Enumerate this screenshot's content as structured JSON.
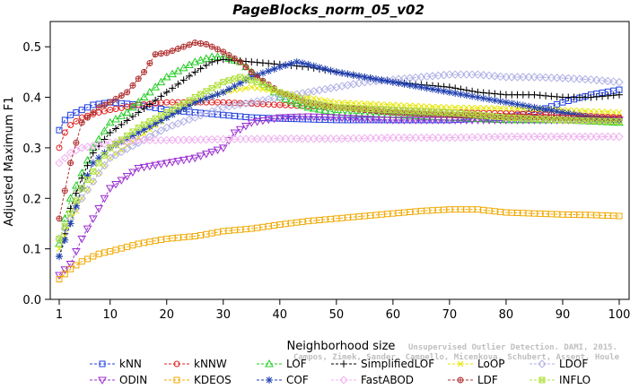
{
  "chart_data": {
    "type": "line",
    "title": "PageBlocks_norm_05_v02",
    "xlabel": "Neighborhood size",
    "ylabel": "Adjusted Maximum F1",
    "xlim": [
      1,
      100
    ],
    "ylim": [
      0,
      0.55
    ],
    "xticks": [
      1,
      10,
      20,
      30,
      40,
      50,
      60,
      70,
      80,
      90,
      100
    ],
    "yticks": [
      0.0,
      0.1,
      0.2,
      0.3,
      0.4,
      0.5
    ],
    "yticklabels": [
      "0.0",
      "0.1",
      "0.2",
      "0.3",
      "0.4",
      "0.5"
    ],
    "grid": false,
    "legend_position": "bottom",
    "watermark": [
      "Campos, Zimek, Sander, Campello, Micenkova, Schubert, Assent, Houle",
      "Unsupervised Outlier Detection. DAMI, 2015."
    ],
    "series": [
      {
        "name": "kNN",
        "color": "#1f3fe0",
        "marker": "square",
        "points": [
          [
            1,
            0.335
          ],
          [
            2,
            0.355
          ],
          [
            3,
            0.365
          ],
          [
            5,
            0.375
          ],
          [
            7,
            0.385
          ],
          [
            10,
            0.39
          ],
          [
            15,
            0.385
          ],
          [
            20,
            0.375
          ],
          [
            25,
            0.37
          ],
          [
            30,
            0.365
          ],
          [
            35,
            0.36
          ],
          [
            40,
            0.358
          ],
          [
            50,
            0.355
          ],
          [
            60,
            0.355
          ],
          [
            70,
            0.355
          ],
          [
            80,
            0.36
          ],
          [
            85,
            0.37
          ],
          [
            90,
            0.39
          ],
          [
            95,
            0.405
          ],
          [
            100,
            0.415
          ]
        ]
      },
      {
        "name": "kNNW",
        "color": "#e02020",
        "marker": "circle",
        "points": [
          [
            1,
            0.3
          ],
          [
            2,
            0.33
          ],
          [
            3,
            0.345
          ],
          [
            5,
            0.36
          ],
          [
            8,
            0.37
          ],
          [
            10,
            0.375
          ],
          [
            15,
            0.385
          ],
          [
            20,
            0.39
          ],
          [
            30,
            0.39
          ],
          [
            40,
            0.385
          ],
          [
            50,
            0.38
          ],
          [
            60,
            0.375
          ],
          [
            70,
            0.37
          ],
          [
            80,
            0.368
          ],
          [
            90,
            0.365
          ],
          [
            100,
            0.36
          ]
        ]
      },
      {
        "name": "LOF",
        "color": "#22cc22",
        "marker": "triangle-up",
        "points": [
          [
            1,
            0.11
          ],
          [
            2,
            0.16
          ],
          [
            3,
            0.2
          ],
          [
            5,
            0.25
          ],
          [
            7,
            0.3
          ],
          [
            10,
            0.35
          ],
          [
            13,
            0.37
          ],
          [
            16,
            0.4
          ],
          [
            20,
            0.44
          ],
          [
            25,
            0.47
          ],
          [
            28,
            0.48
          ],
          [
            30,
            0.48
          ],
          [
            33,
            0.47
          ],
          [
            36,
            0.44
          ],
          [
            40,
            0.4
          ],
          [
            45,
            0.38
          ],
          [
            50,
            0.37
          ],
          [
            60,
            0.365
          ],
          [
            70,
            0.36
          ],
          [
            80,
            0.355
          ],
          [
            90,
            0.355
          ],
          [
            100,
            0.35
          ]
        ]
      },
      {
        "name": "SimplifiedLOF",
        "color": "#000000",
        "marker": "plus",
        "points": [
          [
            1,
            0.085
          ],
          [
            2,
            0.13
          ],
          [
            3,
            0.18
          ],
          [
            5,
            0.24
          ],
          [
            7,
            0.29
          ],
          [
            10,
            0.33
          ],
          [
            15,
            0.37
          ],
          [
            20,
            0.41
          ],
          [
            25,
            0.45
          ],
          [
            28,
            0.47
          ],
          [
            30,
            0.475
          ],
          [
            35,
            0.47
          ],
          [
            40,
            0.465
          ],
          [
            45,
            0.46
          ],
          [
            50,
            0.45
          ],
          [
            55,
            0.44
          ],
          [
            60,
            0.43
          ],
          [
            65,
            0.425
          ],
          [
            70,
            0.42
          ],
          [
            75,
            0.41
          ],
          [
            80,
            0.405
          ],
          [
            85,
            0.405
          ],
          [
            90,
            0.4
          ],
          [
            95,
            0.4
          ],
          [
            100,
            0.405
          ]
        ]
      },
      {
        "name": "LoOP",
        "color": "#e6e600",
        "marker": "cross",
        "points": [
          [
            1,
            0.1
          ],
          [
            3,
            0.15
          ],
          [
            5,
            0.2
          ],
          [
            8,
            0.25
          ],
          [
            10,
            0.28
          ],
          [
            15,
            0.32
          ],
          [
            20,
            0.36
          ],
          [
            25,
            0.39
          ],
          [
            30,
            0.41
          ],
          [
            35,
            0.42
          ],
          [
            40,
            0.41
          ],
          [
            45,
            0.4
          ],
          [
            50,
            0.39
          ],
          [
            60,
            0.385
          ],
          [
            70,
            0.38
          ],
          [
            80,
            0.378
          ],
          [
            90,
            0.375
          ],
          [
            100,
            0.37
          ]
        ]
      },
      {
        "name": "LDOF",
        "color": "#b0b0e6",
        "marker": "diamond",
        "points": [
          [
            1,
            0.12
          ],
          [
            3,
            0.16
          ],
          [
            5,
            0.2
          ],
          [
            8,
            0.25
          ],
          [
            10,
            0.28
          ],
          [
            15,
            0.31
          ],
          [
            20,
            0.34
          ],
          [
            25,
            0.36
          ],
          [
            30,
            0.38
          ],
          [
            35,
            0.39
          ],
          [
            40,
            0.4
          ],
          [
            45,
            0.41
          ],
          [
            50,
            0.42
          ],
          [
            55,
            0.43
          ],
          [
            60,
            0.435
          ],
          [
            65,
            0.44
          ],
          [
            70,
            0.445
          ],
          [
            75,
            0.445
          ],
          [
            80,
            0.44
          ],
          [
            85,
            0.44
          ],
          [
            90,
            0.438
          ],
          [
            95,
            0.435
          ],
          [
            100,
            0.43
          ]
        ]
      },
      {
        "name": "ODIN",
        "color": "#9b30d0",
        "marker": "triangle-down",
        "points": [
          [
            1,
            0.048
          ],
          [
            3,
            0.07
          ],
          [
            5,
            0.12
          ],
          [
            8,
            0.18
          ],
          [
            10,
            0.22
          ],
          [
            15,
            0.26
          ],
          [
            20,
            0.27
          ],
          [
            25,
            0.28
          ],
          [
            30,
            0.3
          ],
          [
            32,
            0.33
          ],
          [
            35,
            0.35
          ],
          [
            40,
            0.36
          ],
          [
            45,
            0.362
          ],
          [
            50,
            0.36
          ],
          [
            60,
            0.355
          ],
          [
            70,
            0.355
          ],
          [
            80,
            0.355
          ],
          [
            90,
            0.355
          ],
          [
            100,
            0.355
          ]
        ]
      },
      {
        "name": "KDEOS",
        "color": "#f0a800",
        "marker": "square",
        "points": [
          [
            1,
            0.04
          ],
          [
            3,
            0.06
          ],
          [
            5,
            0.075
          ],
          [
            8,
            0.09
          ],
          [
            10,
            0.095
          ],
          [
            15,
            0.11
          ],
          [
            20,
            0.12
          ],
          [
            25,
            0.125
          ],
          [
            30,
            0.135
          ],
          [
            35,
            0.14
          ],
          [
            40,
            0.148
          ],
          [
            45,
            0.155
          ],
          [
            50,
            0.16
          ],
          [
            55,
            0.165
          ],
          [
            60,
            0.17
          ],
          [
            65,
            0.175
          ],
          [
            70,
            0.178
          ],
          [
            75,
            0.178
          ],
          [
            80,
            0.172
          ],
          [
            85,
            0.17
          ],
          [
            90,
            0.168
          ],
          [
            95,
            0.167
          ],
          [
            100,
            0.165
          ]
        ]
      },
      {
        "name": "COF",
        "color": "#1f3fb0",
        "marker": "asterisk",
        "points": [
          [
            1,
            0.085
          ],
          [
            3,
            0.15
          ],
          [
            5,
            0.22
          ],
          [
            7,
            0.27
          ],
          [
            10,
            0.3
          ],
          [
            15,
            0.33
          ],
          [
            20,
            0.36
          ],
          [
            25,
            0.39
          ],
          [
            30,
            0.41
          ],
          [
            35,
            0.44
          ],
          [
            40,
            0.46
          ],
          [
            43,
            0.47
          ],
          [
            45,
            0.465
          ],
          [
            50,
            0.45
          ],
          [
            55,
            0.44
          ],
          [
            60,
            0.43
          ],
          [
            65,
            0.42
          ],
          [
            70,
            0.41
          ],
          [
            75,
            0.4
          ],
          [
            80,
            0.39
          ],
          [
            85,
            0.38
          ],
          [
            90,
            0.37
          ],
          [
            95,
            0.36
          ],
          [
            100,
            0.355
          ]
        ]
      },
      {
        "name": "FastABOD",
        "color": "#f0b0f0",
        "marker": "diamond",
        "points": [
          [
            1,
            0.27
          ],
          [
            3,
            0.29
          ],
          [
            5,
            0.3
          ],
          [
            10,
            0.31
          ],
          [
            15,
            0.315
          ],
          [
            20,
            0.315
          ],
          [
            30,
            0.317
          ],
          [
            40,
            0.318
          ],
          [
            50,
            0.318
          ],
          [
            60,
            0.32
          ],
          [
            70,
            0.32
          ],
          [
            80,
            0.322
          ],
          [
            90,
            0.322
          ],
          [
            100,
            0.322
          ]
        ]
      },
      {
        "name": "LDF",
        "color": "#b03030",
        "marker": "circle-plus",
        "points": [
          [
            1,
            0.16
          ],
          [
            3,
            0.27
          ],
          [
            5,
            0.35
          ],
          [
            8,
            0.38
          ],
          [
            10,
            0.39
          ],
          [
            13,
            0.41
          ],
          [
            16,
            0.45
          ],
          [
            18,
            0.485
          ],
          [
            20,
            0.488
          ],
          [
            23,
            0.5
          ],
          [
            25,
            0.508
          ],
          [
            27,
            0.505
          ],
          [
            30,
            0.49
          ],
          [
            33,
            0.47
          ],
          [
            36,
            0.44
          ],
          [
            40,
            0.41
          ],
          [
            45,
            0.39
          ],
          [
            50,
            0.38
          ],
          [
            60,
            0.37
          ],
          [
            70,
            0.365
          ],
          [
            80,
            0.362
          ],
          [
            90,
            0.36
          ],
          [
            100,
            0.358
          ]
        ]
      },
      {
        "name": "INFLO",
        "color": "#b0e040",
        "marker": "square-cross",
        "points": [
          [
            1,
            0.12
          ],
          [
            3,
            0.17
          ],
          [
            5,
            0.22
          ],
          [
            8,
            0.27
          ],
          [
            10,
            0.3
          ],
          [
            15,
            0.34
          ],
          [
            20,
            0.37
          ],
          [
            25,
            0.4
          ],
          [
            30,
            0.43
          ],
          [
            33,
            0.44
          ],
          [
            36,
            0.43
          ],
          [
            40,
            0.41
          ],
          [
            45,
            0.39
          ],
          [
            50,
            0.38
          ],
          [
            60,
            0.375
          ],
          [
            70,
            0.37
          ],
          [
            80,
            0.36
          ],
          [
            90,
            0.355
          ],
          [
            100,
            0.352
          ]
        ]
      }
    ]
  }
}
